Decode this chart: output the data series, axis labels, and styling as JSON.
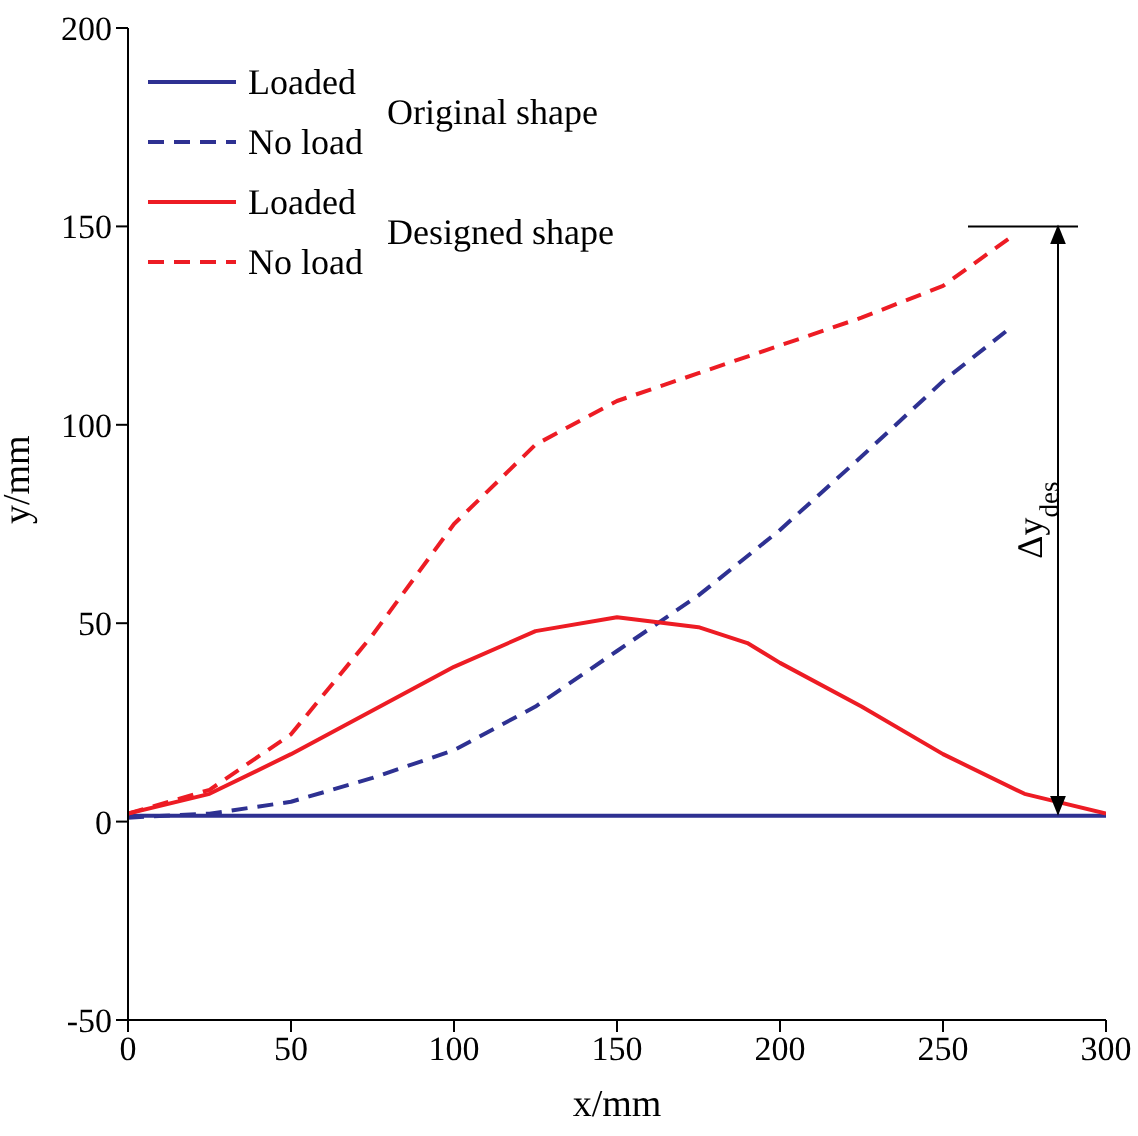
{
  "chart_data": {
    "type": "line",
    "xlabel": "x/mm",
    "ylabel": "y/mm",
    "xlim": [
      0,
      300
    ],
    "xticks": [
      0,
      50,
      100,
      150,
      200,
      250,
      300
    ],
    "ylim": [
      -50,
      200
    ],
    "yticks": [
      -50,
      0,
      50,
      100,
      150,
      200
    ],
    "legend": "top left",
    "marker": "none",
    "series": [
      {
        "name": "Loaded",
        "color": "#2e3192",
        "line_style": "solid",
        "x": [
          0,
          300
        ],
        "values": [
          1.5,
          1.5
        ]
      },
      {
        "name": "No load",
        "color": "#2e3192",
        "line_style": "dashed",
        "x": [
          0,
          25,
          50,
          75,
          100,
          125,
          150,
          175,
          200,
          225,
          250,
          270
        ],
        "values": [
          1,
          2,
          5,
          11,
          18,
          29,
          43,
          57,
          73.5,
          92,
          111,
          124
        ]
      },
      {
        "name": "Loaded",
        "color": "#ed1c24",
        "line_style": "solid",
        "x": [
          0,
          25,
          50,
          75,
          100,
          125,
          150,
          175,
          190,
          200,
          225,
          250,
          275,
          300
        ],
        "values": [
          2,
          7,
          17,
          28,
          39,
          48,
          51.5,
          49,
          45,
          40,
          29,
          17,
          7,
          2
        ]
      },
      {
        "name": "No load",
        "color": "#ed1c24",
        "line_style": "dashed",
        "x": [
          0,
          25,
          50,
          75,
          100,
          125,
          150,
          175,
          200,
          225,
          250,
          272
        ],
        "values": [
          2,
          8,
          22,
          47,
          75,
          95,
          106,
          113,
          120,
          127,
          135,
          148
        ]
      }
    ],
    "annotations": [
      "Original shape",
      "Designed shape",
      "Δy$_{des}$"
    ]
  }
}
